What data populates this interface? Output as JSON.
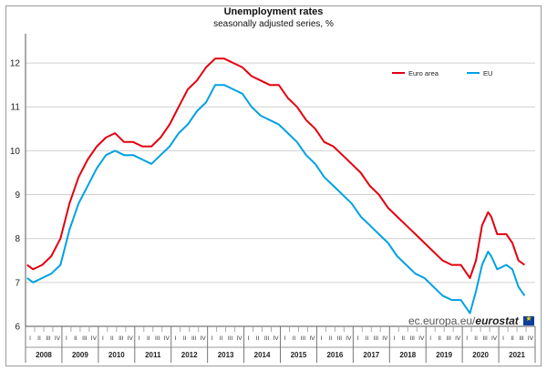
{
  "chart_data": {
    "type": "line",
    "title": "Unemployment rates",
    "subtitle": "seasonally adjusted series, %",
    "ylim": [
      6,
      12.5
    ],
    "y_ticks": [
      "6",
      "7",
      "8",
      "9",
      "10",
      "11",
      "12"
    ],
    "grid": true,
    "legend_position": "top-right",
    "quarter_labels": [
      "I",
      "II",
      "III",
      "IV"
    ],
    "years": [
      "2008",
      "2009",
      "2010",
      "2011",
      "2012",
      "2013",
      "2014",
      "2015",
      "2016",
      "2017",
      "2018",
      "2019",
      "2020",
      "2021"
    ],
    "series": [
      {
        "name": "Euro area",
        "color": "#e3000f",
        "values": [
          {
            "x": "2008-01",
            "y": 7.4
          },
          {
            "x": "2008-03",
            "y": 7.3
          },
          {
            "x": "2008-06",
            "y": 7.4
          },
          {
            "x": "2008-09",
            "y": 7.6
          },
          {
            "x": "2008-12",
            "y": 8.0
          },
          {
            "x": "2009-03",
            "y": 8.8
          },
          {
            "x": "2009-06",
            "y": 9.4
          },
          {
            "x": "2009-09",
            "y": 9.8
          },
          {
            "x": "2009-12",
            "y": 10.1
          },
          {
            "x": "2010-03",
            "y": 10.3
          },
          {
            "x": "2010-06",
            "y": 10.4
          },
          {
            "x": "2010-09",
            "y": 10.2
          },
          {
            "x": "2010-12",
            "y": 10.2
          },
          {
            "x": "2011-03",
            "y": 10.1
          },
          {
            "x": "2011-06",
            "y": 10.1
          },
          {
            "x": "2011-09",
            "y": 10.3
          },
          {
            "x": "2011-12",
            "y": 10.6
          },
          {
            "x": "2012-03",
            "y": 11.0
          },
          {
            "x": "2012-06",
            "y": 11.4
          },
          {
            "x": "2012-09",
            "y": 11.6
          },
          {
            "x": "2012-12",
            "y": 11.9
          },
          {
            "x": "2013-03",
            "y": 12.1
          },
          {
            "x": "2013-06",
            "y": 12.1
          },
          {
            "x": "2013-09",
            "y": 12.0
          },
          {
            "x": "2013-12",
            "y": 11.9
          },
          {
            "x": "2014-03",
            "y": 11.7
          },
          {
            "x": "2014-06",
            "y": 11.6
          },
          {
            "x": "2014-09",
            "y": 11.5
          },
          {
            "x": "2014-12",
            "y": 11.5
          },
          {
            "x": "2015-03",
            "y": 11.2
          },
          {
            "x": "2015-06",
            "y": 11.0
          },
          {
            "x": "2015-09",
            "y": 10.7
          },
          {
            "x": "2015-12",
            "y": 10.5
          },
          {
            "x": "2016-03",
            "y": 10.2
          },
          {
            "x": "2016-06",
            "y": 10.1
          },
          {
            "x": "2016-09",
            "y": 9.9
          },
          {
            "x": "2016-12",
            "y": 9.7
          },
          {
            "x": "2017-03",
            "y": 9.5
          },
          {
            "x": "2017-06",
            "y": 9.2
          },
          {
            "x": "2017-09",
            "y": 9.0
          },
          {
            "x": "2017-12",
            "y": 8.7
          },
          {
            "x": "2018-03",
            "y": 8.5
          },
          {
            "x": "2018-06",
            "y": 8.3
          },
          {
            "x": "2018-09",
            "y": 8.1
          },
          {
            "x": "2018-12",
            "y": 7.9
          },
          {
            "x": "2019-03",
            "y": 7.7
          },
          {
            "x": "2019-06",
            "y": 7.5
          },
          {
            "x": "2019-09",
            "y": 7.4
          },
          {
            "x": "2019-12",
            "y": 7.4
          },
          {
            "x": "2020-03",
            "y": 7.1
          },
          {
            "x": "2020-05",
            "y": 7.5
          },
          {
            "x": "2020-07",
            "y": 8.3
          },
          {
            "x": "2020-09",
            "y": 8.6
          },
          {
            "x": "2020-10",
            "y": 8.5
          },
          {
            "x": "2020-12",
            "y": 8.1
          },
          {
            "x": "2021-03",
            "y": 8.1
          },
          {
            "x": "2021-05",
            "y": 7.9
          },
          {
            "x": "2021-07",
            "y": 7.5
          },
          {
            "x": "2021-09",
            "y": 7.4
          }
        ]
      },
      {
        "name": "EU",
        "color": "#00a1e4",
        "values": [
          {
            "x": "2008-01",
            "y": 7.1
          },
          {
            "x": "2008-03",
            "y": 7.0
          },
          {
            "x": "2008-06",
            "y": 7.1
          },
          {
            "x": "2008-09",
            "y": 7.2
          },
          {
            "x": "2008-12",
            "y": 7.4
          },
          {
            "x": "2009-03",
            "y": 8.2
          },
          {
            "x": "2009-06",
            "y": 8.8
          },
          {
            "x": "2009-09",
            "y": 9.2
          },
          {
            "x": "2009-12",
            "y": 9.6
          },
          {
            "x": "2010-03",
            "y": 9.9
          },
          {
            "x": "2010-06",
            "y": 10.0
          },
          {
            "x": "2010-09",
            "y": 9.9
          },
          {
            "x": "2010-12",
            "y": 9.9
          },
          {
            "x": "2011-03",
            "y": 9.8
          },
          {
            "x": "2011-06",
            "y": 9.7
          },
          {
            "x": "2011-09",
            "y": 9.9
          },
          {
            "x": "2011-12",
            "y": 10.1
          },
          {
            "x": "2012-03",
            "y": 10.4
          },
          {
            "x": "2012-06",
            "y": 10.6
          },
          {
            "x": "2012-09",
            "y": 10.9
          },
          {
            "x": "2012-12",
            "y": 11.1
          },
          {
            "x": "2013-03",
            "y": 11.5
          },
          {
            "x": "2013-06",
            "y": 11.5
          },
          {
            "x": "2013-09",
            "y": 11.4
          },
          {
            "x": "2013-12",
            "y": 11.3
          },
          {
            "x": "2014-03",
            "y": 11.0
          },
          {
            "x": "2014-06",
            "y": 10.8
          },
          {
            "x": "2014-09",
            "y": 10.7
          },
          {
            "x": "2014-12",
            "y": 10.6
          },
          {
            "x": "2015-03",
            "y": 10.4
          },
          {
            "x": "2015-06",
            "y": 10.2
          },
          {
            "x": "2015-09",
            "y": 9.9
          },
          {
            "x": "2015-12",
            "y": 9.7
          },
          {
            "x": "2016-03",
            "y": 9.4
          },
          {
            "x": "2016-06",
            "y": 9.2
          },
          {
            "x": "2016-09",
            "y": 9.0
          },
          {
            "x": "2016-12",
            "y": 8.8
          },
          {
            "x": "2017-03",
            "y": 8.5
          },
          {
            "x": "2017-06",
            "y": 8.3
          },
          {
            "x": "2017-09",
            "y": 8.1
          },
          {
            "x": "2017-12",
            "y": 7.9
          },
          {
            "x": "2018-03",
            "y": 7.6
          },
          {
            "x": "2018-06",
            "y": 7.4
          },
          {
            "x": "2018-09",
            "y": 7.2
          },
          {
            "x": "2018-12",
            "y": 7.1
          },
          {
            "x": "2019-03",
            "y": 6.9
          },
          {
            "x": "2019-06",
            "y": 6.7
          },
          {
            "x": "2019-09",
            "y": 6.6
          },
          {
            "x": "2019-12",
            "y": 6.6
          },
          {
            "x": "2020-03",
            "y": 6.3
          },
          {
            "x": "2020-05",
            "y": 6.8
          },
          {
            "x": "2020-07",
            "y": 7.4
          },
          {
            "x": "2020-09",
            "y": 7.7
          },
          {
            "x": "2020-10",
            "y": 7.6
          },
          {
            "x": "2020-12",
            "y": 7.3
          },
          {
            "x": "2021-03",
            "y": 7.4
          },
          {
            "x": "2021-05",
            "y": 7.3
          },
          {
            "x": "2021-07",
            "y": 6.9
          },
          {
            "x": "2021-09",
            "y": 6.7
          }
        ]
      }
    ]
  },
  "footer": {
    "source_prefix": "ec.europa.eu/",
    "source_brand": "eurostat",
    "flag_icon": "eu-flag-icon"
  }
}
